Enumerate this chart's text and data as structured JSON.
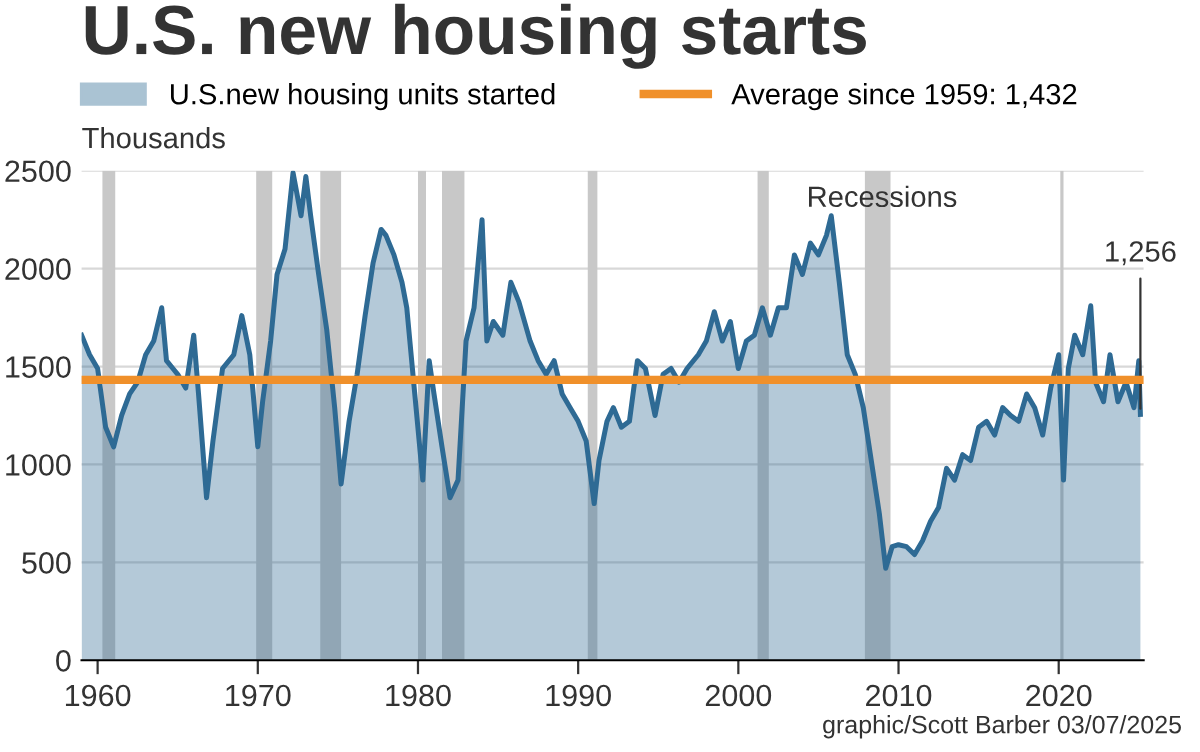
{
  "chart_data": {
    "type": "area",
    "title": "U.S. new housing starts",
    "ylabel": "Thousands",
    "x": [
      1959.0,
      1959.5,
      1960.0,
      1960.5,
      1961.0,
      1961.5,
      1962.0,
      1962.5,
      1963.0,
      1963.5,
      1964.0,
      1964.3,
      1964.7,
      1965.0,
      1965.5,
      1966.0,
      1966.3,
      1966.8,
      1967.2,
      1967.8,
      1968.5,
      1969.0,
      1969.5,
      1970.0,
      1970.3,
      1970.8,
      1971.2,
      1971.7,
      1972.2,
      1972.7,
      1973.0,
      1973.3,
      1973.8,
      1974.3,
      1974.8,
      1975.2,
      1975.7,
      1976.2,
      1976.7,
      1977.2,
      1977.7,
      1978.0,
      1978.5,
      1979.0,
      1979.3,
      1979.8,
      1980.3,
      1980.7,
      1981.0,
      1981.5,
      1982.0,
      1982.5,
      1983.0,
      1983.5,
      1984.0,
      1984.3,
      1984.7,
      1985.3,
      1985.8,
      1986.3,
      1987.0,
      1987.5,
      1988.0,
      1988.5,
      1989.0,
      1989.5,
      1990.0,
      1990.5,
      1991.0,
      1991.3,
      1991.8,
      1992.2,
      1992.7,
      1993.2,
      1993.7,
      1994.2,
      1994.8,
      1995.3,
      1995.8,
      1996.3,
      1996.8,
      1997.5,
      1998.0,
      1998.5,
      1999.0,
      1999.5,
      2000.0,
      2000.5,
      2001.0,
      2001.5,
      2002.0,
      2002.5,
      2003.0,
      2003.5,
      2004.0,
      2004.5,
      2005.0,
      2005.5,
      2005.8,
      2006.3,
      2006.8,
      2007.3,
      2007.8,
      2008.3,
      2008.8,
      2009.2,
      2009.6,
      2010.0,
      2010.5,
      2011.0,
      2011.5,
      2012.0,
      2012.5,
      2013.0,
      2013.5,
      2014.0,
      2014.5,
      2015.0,
      2015.5,
      2016.0,
      2016.5,
      2017.0,
      2017.5,
      2018.0,
      2018.5,
      2019.0,
      2019.5,
      2020.0,
      2020.3,
      2020.6,
      2021.0,
      2021.5,
      2022.0,
      2022.3,
      2022.8,
      2023.2,
      2023.7,
      2024.2,
      2024.7,
      2025.0,
      2025.1
    ],
    "series": [
      {
        "name": "U.S.new housing units started",
        "color": "#2e6a94",
        "values": [
          1660,
          1560,
          1490,
          1190,
          1090,
          1250,
          1360,
          1420,
          1560,
          1630,
          1800,
          1530,
          1490,
          1460,
          1390,
          1660,
          1360,
          830,
          1120,
          1490,
          1560,
          1760,
          1560,
          1090,
          1320,
          1630,
          1970,
          2100,
          2490,
          2270,
          2470,
          2270,
          1970,
          1690,
          1290,
          900,
          1220,
          1460,
          1760,
          2030,
          2200,
          2170,
          2070,
          1930,
          1800,
          1360,
          920,
          1530,
          1360,
          1090,
          830,
          920,
          1630,
          1800,
          2250,
          1630,
          1730,
          1660,
          1930,
          1830,
          1630,
          1530,
          1460,
          1530,
          1360,
          1290,
          1220,
          1120,
          800,
          1020,
          1220,
          1290,
          1190,
          1220,
          1530,
          1490,
          1250,
          1460,
          1490,
          1420,
          1490,
          1560,
          1630,
          1780,
          1630,
          1730,
          1490,
          1630,
          1660,
          1800,
          1660,
          1800,
          1800,
          2070,
          1970,
          2130,
          2070,
          2170,
          2270,
          1930,
          1560,
          1460,
          1290,
          1020,
          750,
          470,
          580,
          590,
          580,
          540,
          610,
          710,
          780,
          980,
          920,
          1050,
          1020,
          1190,
          1220,
          1150,
          1290,
          1250,
          1220,
          1360,
          1290,
          1150,
          1390,
          1560,
          920,
          1490,
          1660,
          1560,
          1810,
          1420,
          1320,
          1560,
          1320,
          1420,
          1290,
          1530,
          1256
        ]
      }
    ],
    "xlim": [
      1959,
      2025.3
    ],
    "xticks": [
      1960,
      1970,
      1980,
      1990,
      2000,
      2010,
      2020
    ],
    "ylim": [
      0,
      2500
    ],
    "yticks": [
      0,
      500,
      1000,
      1500,
      2000,
      2500
    ],
    "grid": "y",
    "legend": "top",
    "ref_lines": [
      {
        "axis": "y",
        "value": 1432,
        "label": "Average since 1959: 1,432",
        "color": "#f0902a"
      }
    ],
    "bands": [
      {
        "axis": "x",
        "from": 1960.3,
        "to": 1961.1,
        "color": "#c8c8c8"
      },
      {
        "axis": "x",
        "from": 1969.9,
        "to": 1970.9,
        "color": "#c8c8c8"
      },
      {
        "axis": "x",
        "from": 1973.9,
        "to": 1975.2,
        "color": "#c8c8c8"
      },
      {
        "axis": "x",
        "from": 1980.0,
        "to": 1980.5,
        "color": "#c8c8c8"
      },
      {
        "axis": "x",
        "from": 1981.5,
        "to": 1982.9,
        "color": "#c8c8c8"
      },
      {
        "axis": "x",
        "from": 1990.6,
        "to": 1991.2,
        "color": "#c8c8c8"
      },
      {
        "axis": "x",
        "from": 2001.2,
        "to": 2001.9,
        "color": "#c8c8c8"
      },
      {
        "axis": "x",
        "from": 2007.9,
        "to": 2009.5,
        "color": "#c8c8c8"
      },
      {
        "axis": "x",
        "from": 2020.1,
        "to": 2020.3,
        "color": "#c8c8c8"
      }
    ],
    "annotations": [
      "Recessions",
      {
        "text": "1,256",
        "x": 2025.1,
        "y": 1256
      },
      "graphic/Scott Barber 03/07/2025"
    ]
  }
}
